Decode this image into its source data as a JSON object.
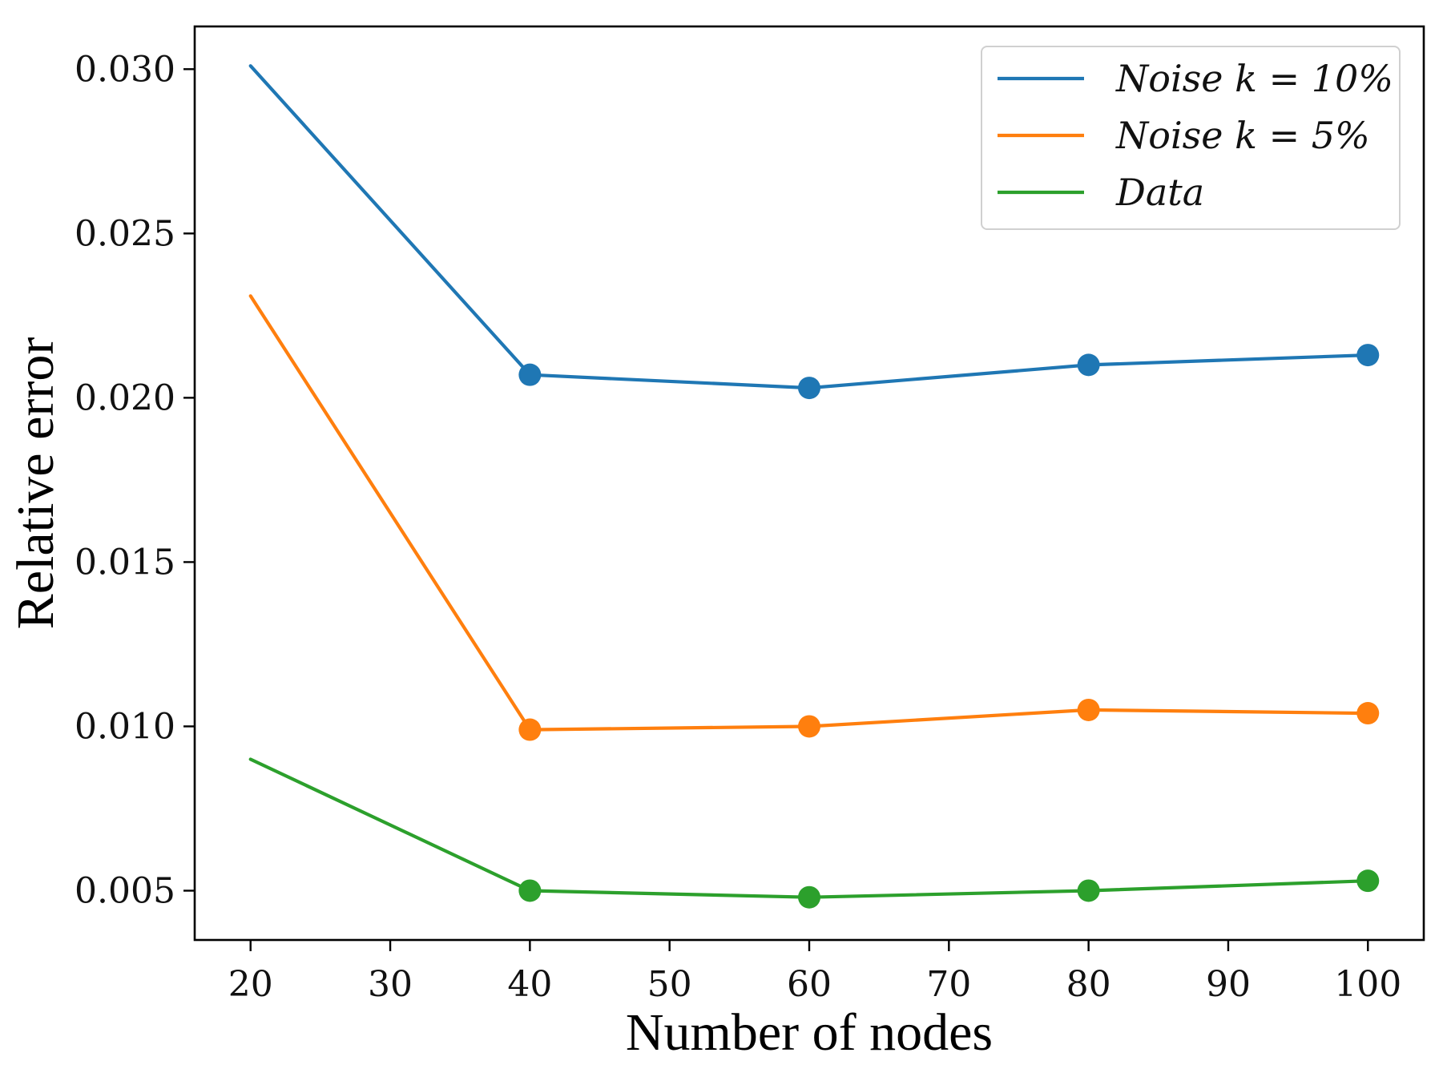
{
  "chart_data": {
    "type": "line",
    "title": "",
    "xlabel": "Number of nodes",
    "ylabel": "Relative error",
    "xlim": [
      16,
      104
    ],
    "ylim": [
      0.0035,
      0.0313
    ],
    "xticks": [
      20,
      30,
      40,
      50,
      60,
      70,
      80,
      90,
      100
    ],
    "xtick_labels": [
      "20",
      "30",
      "40",
      "50",
      "60",
      "70",
      "80",
      "90",
      "100"
    ],
    "yticks": [
      0.005,
      0.01,
      0.015,
      0.02,
      0.025,
      0.03
    ],
    "ytick_labels": [
      "0.005",
      "0.010",
      "0.015",
      "0.020",
      "0.025",
      "0.030"
    ],
    "grid": false,
    "legend_position": "top-right",
    "series": [
      {
        "name": "Noise k = 10%",
        "legend_label": "Noise k = 10%",
        "color": "#1f77b4",
        "x": [
          20,
          40,
          60,
          80,
          100
        ],
        "values": [
          0.0301,
          0.0207,
          0.0203,
          0.021,
          0.0213
        ],
        "markers_from_index": 1
      },
      {
        "name": "Noise k = 5%",
        "legend_label": "Noise k = 5%",
        "color": "#ff7f0e",
        "x": [
          20,
          40,
          60,
          80,
          100
        ],
        "values": [
          0.0231,
          0.0099,
          0.01,
          0.0105,
          0.0104
        ],
        "markers_from_index": 1
      },
      {
        "name": "Data",
        "legend_label": "Data",
        "color": "#2ca02c",
        "x": [
          20,
          40,
          60,
          80,
          100
        ],
        "values": [
          0.009,
          0.005,
          0.0048,
          0.005,
          0.0053
        ],
        "markers_from_index": 1
      }
    ]
  }
}
